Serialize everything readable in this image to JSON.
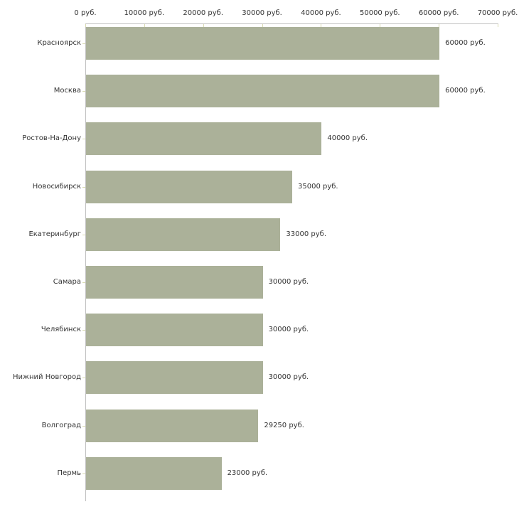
{
  "chart_data": {
    "type": "bar",
    "orientation": "horizontal",
    "title": "",
    "xlabel": "",
    "ylabel": "",
    "unit": "руб.",
    "grid": false,
    "legend": null,
    "xlim": [
      0,
      70000
    ],
    "x_ticks": [
      0,
      10000,
      20000,
      30000,
      40000,
      50000,
      60000,
      70000
    ],
    "x_tick_labels": [
      "0 руб.",
      "10000 руб.",
      "20000 руб.",
      "30000 руб.",
      "40000 руб.",
      "50000 руб.",
      "60000 руб.",
      "70000 руб."
    ],
    "categories": [
      "Красноярск",
      "Москва",
      "Ростов-На-Дону",
      "Новосибирск",
      "Екатеринбург",
      "Самара",
      "Челябинск",
      "Нижний Новгород",
      "Волгоград",
      "Пермь"
    ],
    "values": [
      60000,
      60000,
      40000,
      35000,
      33000,
      30000,
      30000,
      30000,
      29250,
      23000
    ],
    "value_labels": [
      "60000 руб.",
      "60000 руб.",
      "40000 руб.",
      "35000 руб.",
      "33000 руб.",
      "30000 руб.",
      "30000 руб.",
      "30000 руб.",
      "29250 руб.",
      "23000 руб."
    ],
    "colors": {
      "bar": "#abb199",
      "axis_line": "#c0c0c0",
      "tick_mark": "#d8dab0",
      "text": "#333333",
      "background": "#ffffff"
    }
  }
}
